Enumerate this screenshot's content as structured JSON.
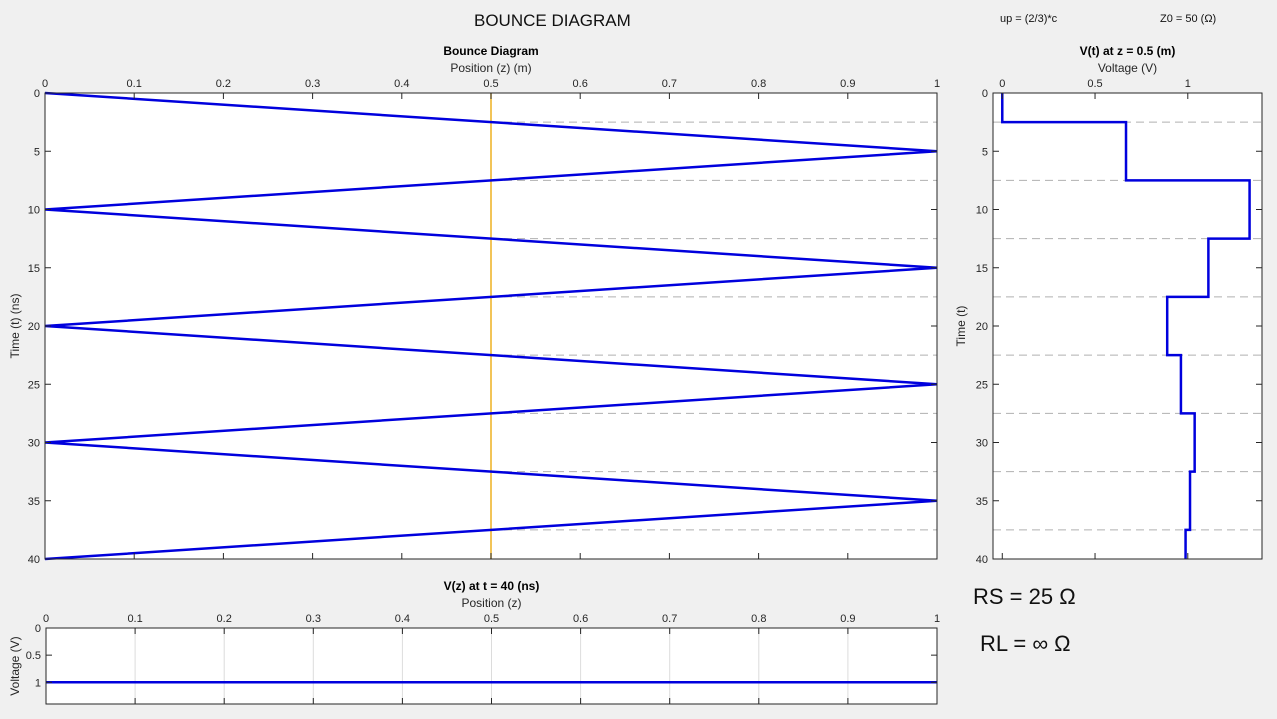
{
  "header": {
    "title": "BOUNCE DIAGRAM",
    "up_label": "up = (2/3)*c",
    "z0_label": "Z0 = 50 (Ω)"
  },
  "params": {
    "rs_label": "RS = 25 Ω",
    "rl_label": "RL = ∞ Ω"
  },
  "colors": {
    "trace": "#0000dd",
    "marker": "#edb120",
    "dashed": "#b0b0b0",
    "axes": "#262626"
  },
  "chart_data": [
    {
      "id": "bounce",
      "type": "line",
      "title": "Bounce Diagram",
      "xlabel": "Position (z) (m)",
      "ylabel": "Time (t) (ns)",
      "xlim": [
        0,
        1
      ],
      "ylim": [
        0,
        40
      ],
      "y_reversed": true,
      "x_axis_location": "top",
      "xticks": [
        0,
        0.1,
        0.2,
        0.3,
        0.4,
        0.5,
        0.6,
        0.7,
        0.8,
        0.9,
        1
      ],
      "yticks": [
        0,
        5,
        10,
        15,
        20,
        25,
        30,
        35,
        40
      ],
      "series": [
        {
          "x": [
            0,
            1,
            0,
            1,
            0,
            1,
            0,
            1,
            0
          ],
          "y": [
            0,
            5,
            10,
            15,
            20,
            25,
            30,
            35,
            40
          ]
        }
      ],
      "marker_line_z": 0.5,
      "crossing_times": [
        2.5,
        7.5,
        12.5,
        17.5,
        22.5,
        27.5,
        32.5,
        37.5
      ]
    },
    {
      "id": "vt",
      "type": "line",
      "title": "V(t) at z = 0.5 (m)",
      "xlabel": "Voltage (V)",
      "ylabel": "Time (t)",
      "xlim": [
        -0.05,
        1.4
      ],
      "ylim": [
        0,
        40
      ],
      "y_reversed": true,
      "x_axis_location": "top",
      "xticks": [
        0,
        0.5,
        1
      ],
      "yticks": [
        0,
        5,
        10,
        15,
        20,
        25,
        30,
        35,
        40
      ],
      "series": [
        {
          "voltage": [
            0,
            0,
            0.667,
            0.667,
            1.333,
            1.333,
            1.111,
            1.111,
            0.889,
            0.889,
            0.963,
            0.963,
            1.037,
            1.037,
            1.012,
            1.012,
            0.988,
            0.988
          ],
          "time": [
            0,
            2.5,
            2.5,
            7.5,
            7.5,
            12.5,
            12.5,
            17.5,
            17.5,
            22.5,
            22.5,
            27.5,
            27.5,
            32.5,
            32.5,
            37.5,
            37.5,
            40
          ]
        }
      ],
      "crossing_times": [
        2.5,
        7.5,
        12.5,
        17.5,
        22.5,
        27.5,
        32.5,
        37.5
      ]
    },
    {
      "id": "vz",
      "type": "line",
      "title": "V(z) at t = 40 (ns)",
      "xlabel": "Position (z)",
      "ylabel": "Voltage (V)",
      "xlim": [
        0,
        1
      ],
      "ylim": [
        0,
        1.4
      ],
      "y_reversed": true,
      "x_axis_location": "top",
      "grid": true,
      "xticks": [
        0,
        0.1,
        0.2,
        0.3,
        0.4,
        0.5,
        0.6,
        0.7,
        0.8,
        0.9,
        1
      ],
      "yticks": [
        0,
        0.5,
        1
      ],
      "series": [
        {
          "x": [
            0,
            1
          ],
          "y": [
            1,
            1
          ]
        }
      ]
    }
  ]
}
